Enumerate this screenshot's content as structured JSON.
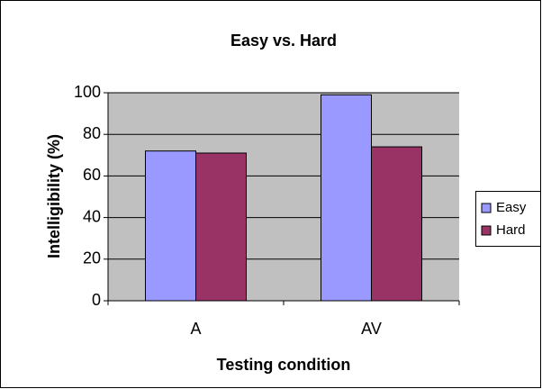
{
  "chart_data": {
    "type": "bar",
    "title": "Easy vs. Hard",
    "x_label": "Testing condition",
    "y_label": "Intelligibility (%)",
    "categories": [
      "A",
      "AV"
    ],
    "series": [
      {
        "name": "Easy",
        "color": "#9999ff",
        "values": [
          72,
          99
        ]
      },
      {
        "name": "Hard",
        "color": "#993366",
        "values": [
          71,
          74
        ]
      }
    ],
    "ylim": [
      0,
      100
    ],
    "yticks": [
      0,
      20,
      40,
      60,
      80,
      100
    ],
    "grid": true,
    "legend": "right"
  }
}
